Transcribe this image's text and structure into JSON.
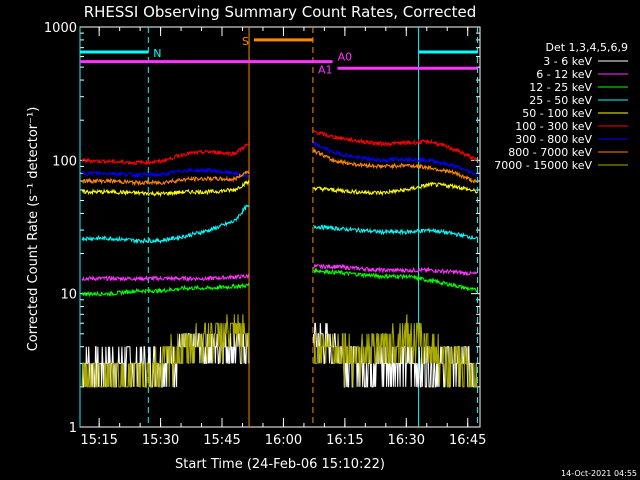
{
  "chart_data": {
    "type": "line",
    "title": "RHESSI Observing Summary Count Rates, Corrected",
    "xlabel": "Start Time (24-Feb-06 15:10:22)",
    "ylabel": "Corrected Count Rate (s⁻¹ detector⁻¹)",
    "yscale": "log",
    "ylim": [
      1,
      1000
    ],
    "xlim": [
      15.172,
      16.8
    ],
    "x_ticks": [
      {
        "value": 15.25,
        "label": "15:15"
      },
      {
        "value": 15.5,
        "label": "15:30"
      },
      {
        "value": 15.75,
        "label": "15:45"
      },
      {
        "value": 16.0,
        "label": "16:00"
      },
      {
        "value": 16.25,
        "label": "16:15"
      },
      {
        "value": 16.5,
        "label": "16:30"
      },
      {
        "value": 16.75,
        "label": "16:45"
      }
    ],
    "y_ticks": [
      {
        "value": 1,
        "label": "1"
      },
      {
        "value": 10,
        "label": "10"
      },
      {
        "value": 100,
        "label": "100"
      },
      {
        "value": 1000,
        "label": "1000"
      }
    ],
    "legend_title": "Det 1,3,4,5,6,9",
    "legend_position": "right",
    "gaps": [
      [
        15.86,
        16.12
      ]
    ],
    "series": [
      {
        "name": "3 - 6 keV",
        "color": "#ffffff",
        "x": [
          15.18,
          15.3,
          15.4,
          15.5,
          15.6,
          15.7,
          15.85,
          16.12,
          16.2,
          16.3,
          16.4,
          16.5,
          16.6,
          16.7,
          16.79
        ],
        "y": [
          3,
          3,
          3,
          3,
          4,
          4,
          4,
          5,
          4,
          3,
          3,
          3,
          3,
          3,
          3
        ]
      },
      {
        "name": "6 - 12 keV",
        "color": "#ff33ff",
        "x": [
          15.18,
          15.3,
          15.4,
          15.5,
          15.6,
          15.7,
          15.85,
          16.12,
          16.2,
          16.3,
          16.4,
          16.5,
          16.6,
          16.7,
          16.79
        ],
        "y": [
          13,
          13,
          13,
          13,
          13,
          13,
          13.5,
          16,
          16,
          15.5,
          15,
          15,
          15,
          14.5,
          14
        ]
      },
      {
        "name": "12 - 25 keV",
        "color": "#00ff00",
        "x": [
          15.18,
          15.3,
          15.4,
          15.5,
          15.6,
          15.7,
          15.85,
          16.12,
          16.2,
          16.3,
          16.4,
          16.5,
          16.6,
          16.7,
          16.79
        ],
        "y": [
          10,
          10,
          10.5,
          10.5,
          11,
          11,
          11.5,
          15,
          14.5,
          14,
          13.5,
          13.5,
          12.5,
          11.5,
          10.5
        ]
      },
      {
        "name": "25 - 50 keV",
        "color": "#00ffff",
        "x": [
          15.18,
          15.3,
          15.4,
          15.5,
          15.6,
          15.7,
          15.8,
          15.85,
          16.12,
          16.2,
          16.3,
          16.4,
          16.5,
          16.6,
          16.7,
          16.79
        ],
        "y": [
          26,
          26,
          25,
          25,
          27,
          30,
          35,
          45,
          32,
          31,
          30,
          29,
          29,
          30,
          28,
          26
        ]
      },
      {
        "name": "50 - 100 keV",
        "color": "#ffff00",
        "x": [
          15.18,
          15.3,
          15.4,
          15.5,
          15.6,
          15.7,
          15.8,
          15.85,
          16.12,
          16.2,
          16.3,
          16.4,
          16.5,
          16.6,
          16.7,
          16.79
        ],
        "y": [
          58,
          58,
          57,
          56,
          58,
          58,
          60,
          68,
          62,
          60,
          58,
          57,
          60,
          66,
          64,
          58
        ]
      },
      {
        "name": "100 - 300 keV",
        "color": "#ff0000",
        "x": [
          15.18,
          15.3,
          15.4,
          15.5,
          15.6,
          15.7,
          15.8,
          15.85,
          16.12,
          16.2,
          16.3,
          16.4,
          16.5,
          16.6,
          16.7,
          16.79
        ],
        "y": [
          100,
          98,
          96,
          98,
          112,
          116,
          112,
          130,
          165,
          150,
          140,
          133,
          135,
          138,
          120,
          100
        ]
      },
      {
        "name": "300 - 800 keV",
        "color": "#0000ff",
        "x": [
          15.18,
          15.3,
          15.4,
          15.5,
          15.6,
          15.7,
          15.8,
          15.85,
          16.12,
          16.2,
          16.3,
          16.4,
          16.5,
          16.6,
          16.7,
          16.79
        ],
        "y": [
          80,
          80,
          78,
          78,
          84,
          84,
          80,
          75,
          135,
          115,
          105,
          100,
          103,
          100,
          90,
          78
        ]
      },
      {
        "name": "800 - 7000 keV",
        "color": "#ff8800",
        "x": [
          15.18,
          15.3,
          15.4,
          15.5,
          15.6,
          15.7,
          15.8,
          15.85,
          16.12,
          16.2,
          16.3,
          16.4,
          16.5,
          16.6,
          16.7,
          16.79
        ],
        "y": [
          70,
          70,
          68,
          68,
          72,
          73,
          72,
          82,
          120,
          100,
          93,
          90,
          92,
          88,
          80,
          68
        ]
      },
      {
        "name": "7000 - 15000 keV",
        "color": "#aaaa00",
        "x": [
          15.18,
          15.3,
          15.4,
          15.5,
          15.6,
          15.7,
          15.8,
          15.85,
          16.12,
          16.2,
          16.3,
          16.4,
          16.5,
          16.6,
          16.7,
          16.79
        ],
        "y": [
          2.5,
          2.5,
          2.5,
          3,
          4,
          5,
          5,
          5,
          4,
          4,
          3.5,
          4,
          5,
          4,
          3,
          2.5
        ]
      }
    ],
    "flag_bars": [
      {
        "label": "N",
        "color": "#00ffff",
        "segments": [
          [
            15.172,
            15.45
          ],
          [
            16.55,
            16.79
          ]
        ],
        "value": 650
      },
      {
        "label": "S",
        "color": "#ff8800",
        "segments": [
          [
            15.88,
            16.12
          ]
        ],
        "value": 800
      },
      {
        "label": "A0",
        "color": "#ff33ff",
        "segments": [
          [
            15.172,
            16.2
          ]
        ],
        "value": 550
      },
      {
        "label": "A1",
        "color": "#ff33ff",
        "segments": [
          [
            16.22,
            16.79
          ]
        ],
        "value": 490
      }
    ],
    "markers": [
      {
        "x": 15.172,
        "color": "#00ffff",
        "style": "solid"
      },
      {
        "x": 15.45,
        "color": "#00ffff",
        "style": "dashed"
      },
      {
        "x": 15.86,
        "color": "#ff8800",
        "style": "solid"
      },
      {
        "x": 16.12,
        "color": "#ff8800",
        "style": "dashed"
      },
      {
        "x": 16.55,
        "color": "#00ffff",
        "style": "solid"
      },
      {
        "x": 16.79,
        "color": "#00ffff",
        "style": "dashed"
      }
    ],
    "timestamp": "14-Oct-2021 04:55"
  }
}
